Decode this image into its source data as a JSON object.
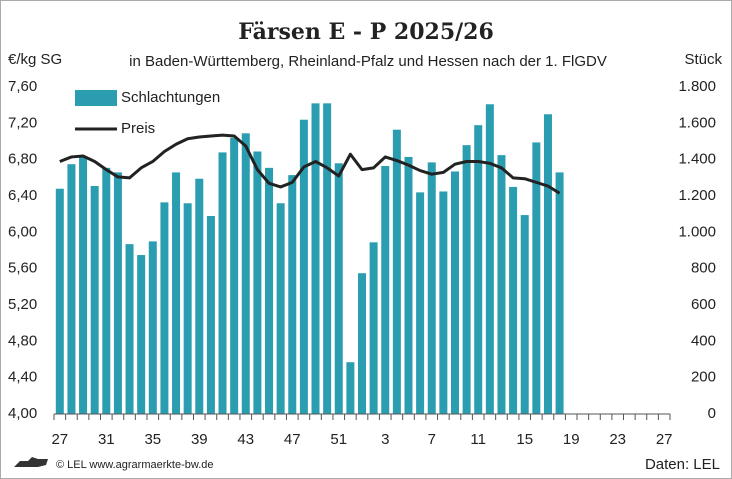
{
  "chart_data": {
    "type": "bar_line",
    "title": "Färsen E - P 2025/26",
    "subtitle": "in Baden-Württemberg, Rheinland-Pfalz und Hessen nach der 1. FlGDV",
    "y_label": "€/kg SG",
    "y2_label": "Stück",
    "source_left": "© LEL www.agrarmaerkte-bw.de",
    "source_right": "Daten: LEL",
    "categories": [
      "27",
      null,
      null,
      null,
      "31",
      null,
      null,
      null,
      "35",
      null,
      null,
      null,
      "39",
      null,
      null,
      null,
      "43",
      null,
      null,
      null,
      "47",
      null,
      null,
      null,
      "51",
      null,
      null,
      null,
      "3",
      null,
      null,
      null,
      "7",
      null,
      null,
      null,
      "11",
      null,
      null,
      null,
      "15",
      null,
      null,
      null,
      "19",
      null,
      null,
      null,
      "23",
      null,
      null,
      null,
      "27"
    ],
    "series": [
      {
        "name": "Schlachtungen",
        "color": "#2a9db0",
        "axis": "y2",
        "kind": "bar",
        "values": [
          1240,
          1375,
          1420,
          1255,
          1355,
          1330,
          935,
          875,
          950,
          1165,
          1330,
          1160,
          1295,
          1090,
          1440,
          1520,
          1545,
          1445,
          1355,
          1160,
          1315,
          1620,
          1710,
          1710,
          1380,
          285,
          775,
          945,
          1365,
          1565,
          1415,
          1220,
          1385,
          1225,
          1335,
          1480,
          1590,
          1705,
          1425,
          1250,
          1095,
          1495,
          1650,
          1330,
          null,
          null,
          null,
          null,
          null,
          null,
          null,
          null,
          null
        ]
      },
      {
        "name": "Preis",
        "color": "#222222",
        "axis": "y",
        "kind": "line",
        "values": [
          6.78,
          6.83,
          6.84,
          6.78,
          6.69,
          6.61,
          6.6,
          6.71,
          6.78,
          6.89,
          6.97,
          7.03,
          7.05,
          7.06,
          7.07,
          7.06,
          6.95,
          6.69,
          6.54,
          6.5,
          6.55,
          6.72,
          6.78,
          6.71,
          6.62,
          6.86,
          6.69,
          6.71,
          6.83,
          6.79,
          6.74,
          6.68,
          6.64,
          6.66,
          6.75,
          6.78,
          6.78,
          6.76,
          6.71,
          6.6,
          6.59,
          6.55,
          6.51,
          6.43,
          null,
          null,
          null,
          null,
          null,
          null,
          null,
          null,
          null
        ]
      }
    ],
    "ylim": [
      4.0,
      7.6
    ],
    "yticks": [
      {
        "value": 4.0,
        "label": "4,00"
      },
      {
        "value": 4.4,
        "label": "4,40"
      },
      {
        "value": 4.8,
        "label": "4,80"
      },
      {
        "value": 5.2,
        "label": "5,20"
      },
      {
        "value": 5.6,
        "label": "5,60"
      },
      {
        "value": 6.0,
        "label": "6,00"
      },
      {
        "value": 6.4,
        "label": "6,40"
      },
      {
        "value": 6.8,
        "label": "6,80"
      },
      {
        "value": 7.2,
        "label": "7,20"
      },
      {
        "value": 7.6,
        "label": "7,60"
      }
    ],
    "y2lim": [
      0,
      1800
    ],
    "y2ticks": [
      0,
      200,
      400,
      600,
      800,
      {
        "value": 1000,
        "label": "1.000"
      },
      {
        "value": 1200,
        "label": "1.200"
      },
      {
        "value": 1400,
        "label": "1.400"
      },
      {
        "value": 1600,
        "label": "1.600"
      },
      {
        "value": 1800,
        "label": "1.800"
      }
    ],
    "grid": false,
    "legend": "top-left"
  }
}
